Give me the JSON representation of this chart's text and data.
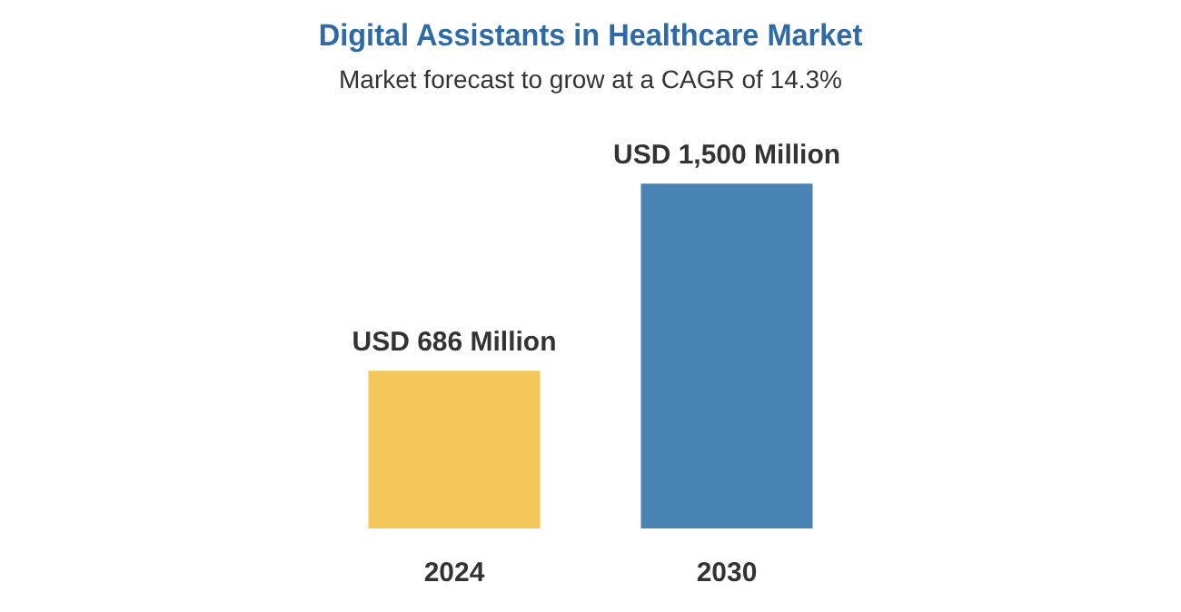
{
  "chart_data": {
    "type": "bar",
    "title": "Digital Assistants in Healthcare Market",
    "subtitle": "Market forecast to grow at a CAGR of 14.3%",
    "categories": [
      "2024",
      "2030"
    ],
    "values": [
      686,
      1500
    ],
    "colors": [
      "#f5c75a",
      "#4a84b5"
    ],
    "value_labels": [
      "USD 686 Million",
      "USD 1,500 Million"
    ]
  }
}
